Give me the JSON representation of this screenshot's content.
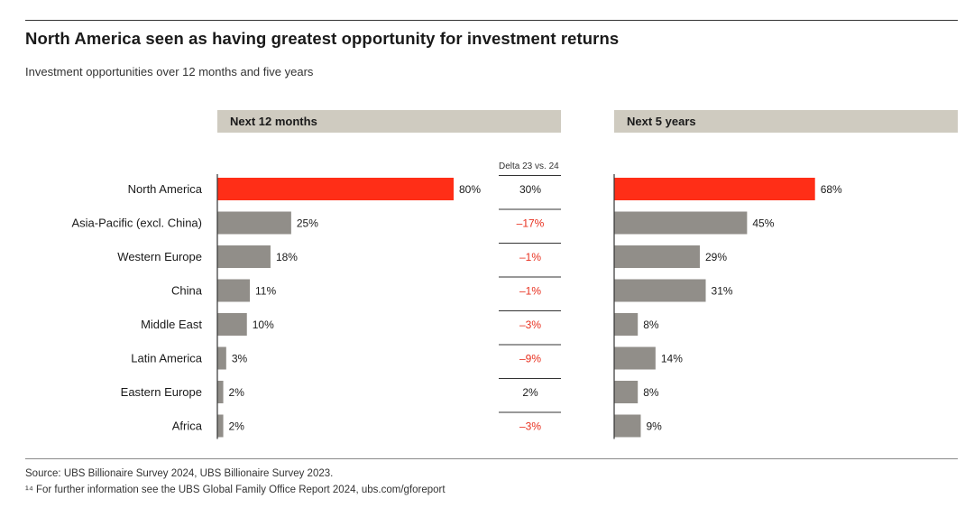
{
  "title": "North America seen as having greatest opportunity for investment returns",
  "subtitle": "Investment opportunities over 12 months and five years",
  "panels": {
    "left_header": "Next 12 months",
    "right_header": "Next 5 years",
    "delta_header": "Delta 23 vs. 24"
  },
  "colors": {
    "highlight": "#ff2e17",
    "bar": "#918e89",
    "negative_text": "#e8301f",
    "header_bg": "#cfcbc0"
  },
  "chart_data": {
    "type": "bar",
    "orientation": "horizontal",
    "categories": [
      "North America",
      "Asia-Pacific (excl. China)",
      "Western Europe",
      "China",
      "Middle East",
      "Latin America",
      "Eastern Europe",
      "Africa"
    ],
    "series": [
      {
        "name": "Next 12 months",
        "values": [
          80,
          25,
          18,
          11,
          10,
          3,
          2,
          2
        ],
        "labels": [
          "80%",
          "25%",
          "18%",
          "11%",
          "10%",
          "3%",
          "2%",
          "2%"
        ]
      },
      {
        "name": "Next 5 years",
        "values": [
          68,
          45,
          29,
          31,
          8,
          14,
          8,
          9
        ],
        "labels": [
          "68%",
          "45%",
          "29%",
          "31%",
          "8%",
          "14%",
          "8%",
          "9%"
        ]
      }
    ],
    "delta": {
      "header": "Delta 23 vs. 24",
      "values": [
        30,
        -17,
        -1,
        -1,
        -3,
        -9,
        2,
        -3
      ],
      "labels": [
        "30%",
        "–17%",
        "–1%",
        "–1%",
        "–3%",
        "–9%",
        "2%",
        "–3%"
      ]
    },
    "highlight_category": "North America",
    "xlim": [
      0,
      100
    ]
  },
  "footer": {
    "source": "Source: UBS Billionaire Survey 2024, UBS Billionaire Survey 2023.",
    "footnote": "¹⁴ For further information see the UBS Global Family Office Report 2024, ubs.com/gforeport"
  }
}
